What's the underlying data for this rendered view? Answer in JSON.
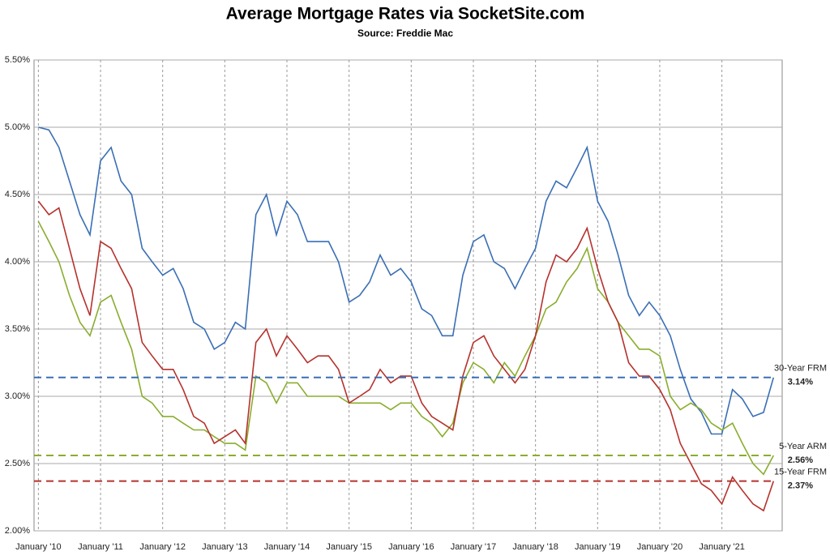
{
  "chart_data": {
    "type": "line",
    "title": "Average Mortgage Rates via SocketSite.com",
    "subtitle": "Source: Freddie Mac",
    "x": [
      2010,
      2010.17,
      2010.33,
      2010.5,
      2010.67,
      2010.83,
      2011,
      2011.17,
      2011.33,
      2011.5,
      2011.67,
      2011.83,
      2012,
      2012.17,
      2012.33,
      2012.5,
      2012.67,
      2012.83,
      2013,
      2013.17,
      2013.33,
      2013.5,
      2013.67,
      2013.83,
      2014,
      2014.17,
      2014.33,
      2014.5,
      2014.67,
      2014.83,
      2015,
      2015.17,
      2015.33,
      2015.5,
      2015.67,
      2015.83,
      2016,
      2016.17,
      2016.33,
      2016.5,
      2016.67,
      2016.83,
      2017,
      2017.17,
      2017.33,
      2017.5,
      2017.67,
      2017.83,
      2018,
      2018.17,
      2018.33,
      2018.5,
      2018.67,
      2018.83,
      2019,
      2019.17,
      2019.33,
      2019.5,
      2019.67,
      2019.83,
      2020,
      2020.17,
      2020.33,
      2020.5,
      2020.67,
      2020.83,
      2021,
      2021.17,
      2021.33,
      2021.5,
      2021.67,
      2021.83
    ],
    "series": [
      {
        "name": "30-Year FRM",
        "color": "#3a6fb5",
        "reference": {
          "value": 3.14,
          "label": "3.14%"
        },
        "values": [
          5.0,
          4.98,
          4.85,
          4.6,
          4.35,
          4.2,
          4.75,
          4.85,
          4.6,
          4.5,
          4.1,
          4.0,
          3.9,
          3.95,
          3.8,
          3.55,
          3.5,
          3.35,
          3.4,
          3.55,
          3.5,
          4.35,
          4.5,
          4.2,
          4.45,
          4.35,
          4.15,
          4.15,
          4.15,
          4.0,
          3.7,
          3.75,
          3.85,
          4.05,
          3.9,
          3.95,
          3.85,
          3.65,
          3.6,
          3.45,
          3.45,
          3.9,
          4.15,
          4.2,
          4.0,
          3.95,
          3.8,
          3.95,
          4.1,
          4.45,
          4.6,
          4.55,
          4.7,
          4.85,
          4.45,
          4.3,
          4.05,
          3.75,
          3.6,
          3.7,
          3.6,
          3.45,
          3.2,
          2.98,
          2.88,
          2.72,
          2.72,
          3.05,
          2.98,
          2.85,
          2.88,
          3.14
        ]
      },
      {
        "name": "5-Year ARM",
        "color": "#8aad2e",
        "reference": {
          "value": 2.56,
          "label": "2.56%"
        },
        "values": [
          4.3,
          4.15,
          4.0,
          3.75,
          3.55,
          3.45,
          3.7,
          3.75,
          3.55,
          3.35,
          3.0,
          2.95,
          2.85,
          2.85,
          2.8,
          2.75,
          2.75,
          2.7,
          2.65,
          2.65,
          2.6,
          3.15,
          3.1,
          2.95,
          3.1,
          3.1,
          3.0,
          3.0,
          3.0,
          3.0,
          2.95,
          2.95,
          2.95,
          2.95,
          2.9,
          2.95,
          2.95,
          2.85,
          2.8,
          2.7,
          2.8,
          3.1,
          3.25,
          3.2,
          3.1,
          3.25,
          3.15,
          3.3,
          3.45,
          3.65,
          3.7,
          3.85,
          3.95,
          4.1,
          3.8,
          3.7,
          3.55,
          3.45,
          3.35,
          3.35,
          3.3,
          3.0,
          2.9,
          2.95,
          2.9,
          2.8,
          2.75,
          2.8,
          2.65,
          2.5,
          2.42,
          2.56
        ]
      },
      {
        "name": "15-Year FRM",
        "color": "#b5322d",
        "reference": {
          "value": 2.37,
          "label": "2.37%"
        },
        "values": [
          4.45,
          4.35,
          4.4,
          4.1,
          3.8,
          3.6,
          4.15,
          4.1,
          3.95,
          3.8,
          3.4,
          3.3,
          3.2,
          3.2,
          3.05,
          2.85,
          2.8,
          2.65,
          2.7,
          2.75,
          2.65,
          3.4,
          3.5,
          3.3,
          3.45,
          3.35,
          3.25,
          3.3,
          3.3,
          3.2,
          2.95,
          3.0,
          3.05,
          3.2,
          3.1,
          3.15,
          3.15,
          2.95,
          2.85,
          2.8,
          2.75,
          3.15,
          3.4,
          3.45,
          3.3,
          3.2,
          3.1,
          3.2,
          3.45,
          3.85,
          4.05,
          4.0,
          4.1,
          4.25,
          3.95,
          3.7,
          3.55,
          3.25,
          3.15,
          3.15,
          3.05,
          2.9,
          2.65,
          2.5,
          2.35,
          2.3,
          2.2,
          2.4,
          2.3,
          2.2,
          2.15,
          2.37
        ]
      }
    ],
    "xlim": [
      2009.93,
      2021.97
    ],
    "xticks": [
      {
        "value": 2010,
        "label": "January '10"
      },
      {
        "value": 2011,
        "label": "January '11"
      },
      {
        "value": 2012,
        "label": "January '12"
      },
      {
        "value": 2013,
        "label": "January '13"
      },
      {
        "value": 2014,
        "label": "January '14"
      },
      {
        "value": 2015,
        "label": "January '15"
      },
      {
        "value": 2016,
        "label": "January '16"
      },
      {
        "value": 2017,
        "label": "January '17"
      },
      {
        "value": 2018,
        "label": "January '18"
      },
      {
        "value": 2019,
        "label": "January '19"
      },
      {
        "value": 2020,
        "label": "January '20"
      },
      {
        "value": 2021,
        "label": "January '21"
      }
    ],
    "ylim": [
      2.0,
      5.5
    ],
    "yticks": [
      {
        "value": 2.0,
        "label": "2.00%"
      },
      {
        "value": 2.5,
        "label": "2.50%"
      },
      {
        "value": 3.0,
        "label": "3.00%"
      },
      {
        "value": 3.5,
        "label": "3.50%"
      },
      {
        "value": 4.0,
        "label": "4.00%"
      },
      {
        "value": 4.5,
        "label": "4.50%"
      },
      {
        "value": 5.0,
        "label": "5.00%"
      },
      {
        "value": 5.5,
        "label": "5.50%"
      }
    ],
    "grid": true
  }
}
